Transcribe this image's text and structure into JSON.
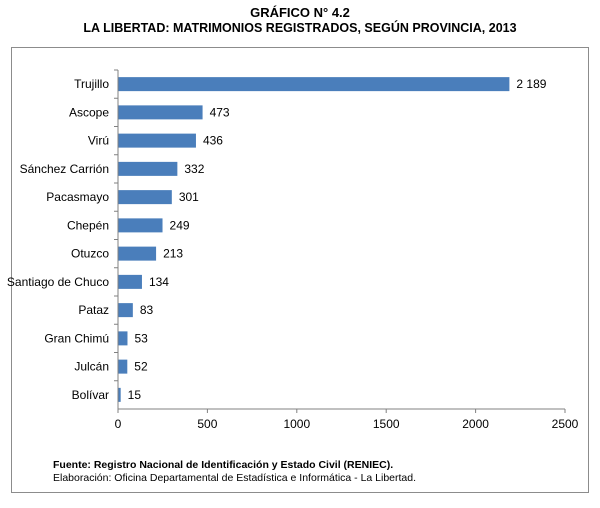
{
  "figure": {
    "number": "GRÁFICO N° 4.2",
    "title": "LA LIBERTAD: MATRIMONIOS REGISTRADOS, SEGÚN PROVINCIA, 2013",
    "source": "Fuente: Registro Nacional de Identificación y Estado Civil (RENIEC).",
    "elaboration": "Elaboración: Oficina Departamental de Estadística e Informática - La Libertad."
  },
  "chart_data": {
    "type": "bar",
    "orientation": "horizontal",
    "title": "LA LIBERTAD: MATRIMONIOS REGISTRADOS, SEGÚN PROVINCIA, 2013",
    "categories": [
      "Trujillo",
      "Ascope",
      "Virú",
      "Sánchez Carrión",
      "Pacasmayo",
      "Chepén",
      "Otuzco",
      "Santiago de Chuco",
      "Pataz",
      "Gran Chimú",
      "Julcán",
      "Bolívar"
    ],
    "values": [
      2189,
      473,
      436,
      332,
      301,
      249,
      213,
      134,
      83,
      53,
      52,
      15
    ],
    "data_labels": [
      "2 189",
      "473",
      "436",
      "332",
      "301",
      "249",
      "213",
      "134",
      "83",
      "53",
      "52",
      "15"
    ],
    "xlim": [
      0,
      2500
    ],
    "xticks": [
      0,
      500,
      1000,
      1500,
      2000,
      2500
    ],
    "bar_color": "#4a7ebb",
    "grid": false,
    "legend": "none"
  }
}
